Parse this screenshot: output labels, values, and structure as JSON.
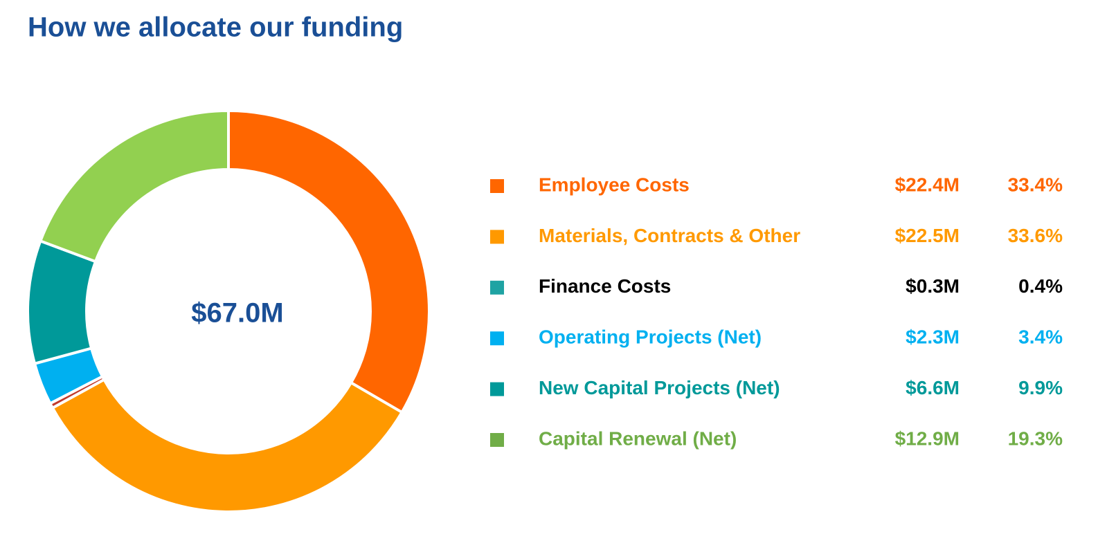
{
  "chart_data": {
    "type": "donut",
    "title": "How we allocate our funding",
    "center_label": "$67.0M",
    "categories": [
      "Employee Costs",
      "Materials, Contracts & Other",
      "Finance Costs",
      "Operating Projects (Net)",
      "New Capital Projects (Net)",
      "Capital Renewal (Net)"
    ],
    "values": [
      33.4,
      33.6,
      0.4,
      3.4,
      9.9,
      19.3
    ],
    "value_labels": [
      "33.4%",
      "33.6%",
      "0.4%",
      "3.4%",
      "9.9%",
      "19.3%"
    ],
    "amounts": [
      22.4,
      22.5,
      0.3,
      2.3,
      6.6,
      12.9
    ],
    "amount_labels": [
      "$22.4M",
      "$22.5M",
      "$0.3M",
      "$2.3M",
      "$6.6M",
      "$12.9M"
    ],
    "colors": [
      "#ff6600",
      "#ff9900",
      "#c0392b",
      "#00b0f0",
      "#009999",
      "#92d050"
    ],
    "legend_colors": [
      "#ff6600",
      "#ff9900",
      "#1fa3a3",
      "#00b0f0",
      "#009999",
      "#70ad47"
    ],
    "text_colors": [
      "#ff6600",
      "#ff9900",
      "#000000",
      "#00b0f0",
      "#009999",
      "#70ad47"
    ],
    "legend": "right"
  }
}
